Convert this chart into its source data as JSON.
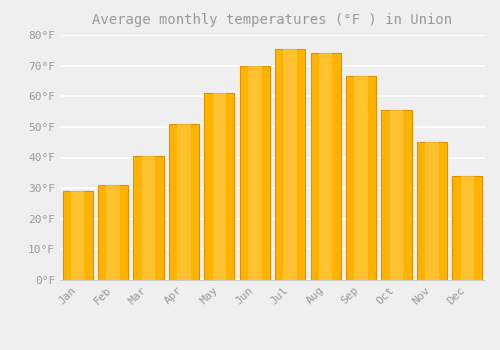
{
  "title": "Average monthly temperatures (°F ) in Union",
  "months": [
    "Jan",
    "Feb",
    "Mar",
    "Apr",
    "May",
    "Jun",
    "Jul",
    "Aug",
    "Sep",
    "Oct",
    "Nov",
    "Dec"
  ],
  "values": [
    29,
    31,
    40.5,
    51,
    61,
    70,
    75.5,
    74,
    66.5,
    55.5,
    45,
    34
  ],
  "bar_color_center": "#FFB300",
  "bar_color_edge": "#F5A800",
  "background_color": "#EFEFEF",
  "plot_bg_color": "#EFEFEF",
  "grid_color": "#FFFFFF",
  "text_color": "#999999",
  "spine_color": "#CCCCCC",
  "ylim": [
    0,
    80
  ],
  "yticks": [
    0,
    10,
    20,
    30,
    40,
    50,
    60,
    70,
    80
  ],
  "ytick_labels": [
    "0°F",
    "10°F",
    "20°F",
    "30°F",
    "40°F",
    "50°F",
    "60°F",
    "70°F",
    "80°F"
  ],
  "title_fontsize": 10,
  "tick_fontsize": 8,
  "font_family": "monospace",
  "bar_width": 0.85
}
